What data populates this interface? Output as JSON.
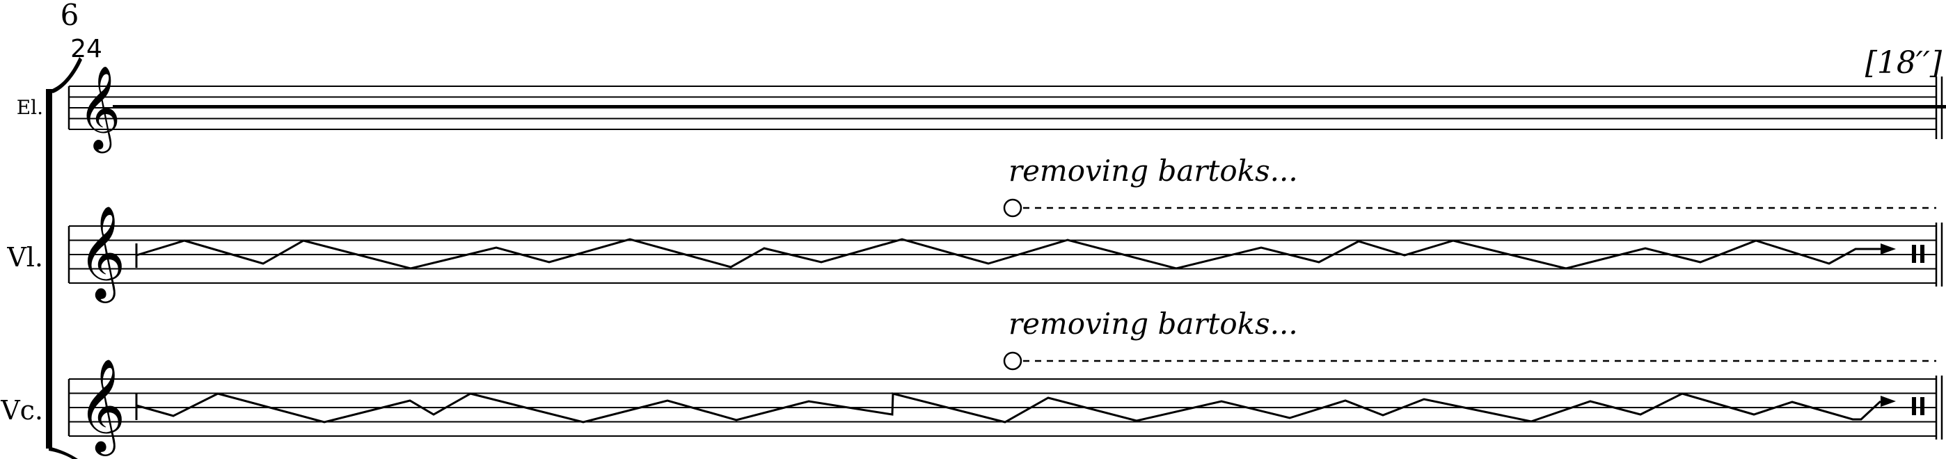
{
  "score": {
    "measure_number": "6",
    "time_signature": "24",
    "duration_marking": "[18′′]",
    "staves": [
      {
        "id": "electronics",
        "label": "El.",
        "clef": "treble",
        "content": "sustained-line"
      },
      {
        "id": "violin",
        "label": "Vl.",
        "clef": "treble",
        "content": "zigzag-glissando",
        "technique_text": "removing bartoks...",
        "ending": "arrow-and-caesura"
      },
      {
        "id": "cello",
        "label": "Vc.",
        "clef": "treble",
        "content": "zigzag-glissando",
        "technique_text": "removing bartoks...",
        "ending": "arrow-and-caesura"
      }
    ]
  },
  "colors": {
    "ink": "#000000",
    "paper": "#ffffff"
  }
}
